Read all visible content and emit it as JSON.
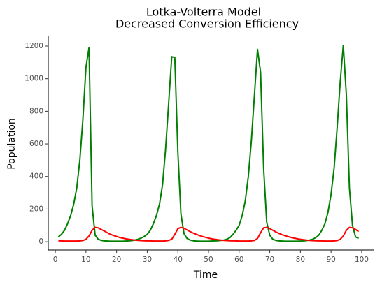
{
  "chart_data": {
    "type": "line",
    "title": [
      "Lotka-Volterra Model",
      "Decreased Conversion Efficiency"
    ],
    "x_label": "Time",
    "y_label": "Population",
    "x": [
      1,
      2,
      3,
      4,
      5,
      6,
      7,
      8,
      9,
      10,
      11,
      12,
      13,
      14,
      15,
      16,
      17,
      18,
      19,
      20,
      21,
      22,
      23,
      24,
      25,
      26,
      27,
      28,
      29,
      30,
      31,
      32,
      33,
      34,
      35,
      36,
      37,
      38,
      39,
      40,
      41,
      42,
      43,
      44,
      45,
      46,
      47,
      48,
      49,
      50,
      51,
      52,
      53,
      54,
      55,
      56,
      57,
      58,
      59,
      60,
      61,
      62,
      63,
      64,
      65,
      66,
      67,
      68,
      69,
      70,
      71,
      72,
      73,
      74,
      75,
      76,
      77,
      78,
      79,
      80,
      81,
      82,
      83,
      84,
      85,
      86,
      87,
      88,
      89,
      90,
      91,
      92,
      93,
      94,
      95,
      96,
      97,
      98,
      99
    ],
    "series": [
      {
        "color": "#008000",
        "values": [
          30,
          45,
          70,
          110,
          160,
          230,
          330,
          500,
          750,
          1070,
          1190,
          220,
          40,
          15,
          8,
          5,
          4,
          3,
          3,
          3,
          3,
          3,
          4,
          5,
          7,
          10,
          15,
          22,
          32,
          45,
          70,
          110,
          160,
          230,
          350,
          570,
          850,
          1135,
          1130,
          550,
          170,
          50,
          20,
          10,
          6,
          4,
          3,
          3,
          3,
          3,
          4,
          5,
          6,
          8,
          10,
          15,
          25,
          45,
          70,
          100,
          160,
          250,
          400,
          620,
          900,
          1180,
          1040,
          450,
          120,
          40,
          15,
          8,
          5,
          4,
          3,
          3,
          3,
          3,
          3,
          4,
          5,
          7,
          10,
          15,
          25,
          40,
          70,
          110,
          180,
          290,
          450,
          700,
          980,
          1205,
          900,
          330,
          100,
          30,
          20
        ]
      },
      {
        "color": "#ff0000",
        "values": [
          5,
          5,
          4,
          4,
          4,
          4,
          4,
          5,
          7,
          15,
          35,
          70,
          88,
          85,
          75,
          65,
          55,
          45,
          38,
          32,
          26,
          22,
          18,
          15,
          12,
          10,
          8,
          7,
          6,
          5,
          5,
          4,
          4,
          4,
          4,
          5,
          8,
          15,
          45,
          80,
          88,
          82,
          72,
          62,
          53,
          45,
          38,
          32,
          27,
          22,
          18,
          15,
          12,
          10,
          8,
          7,
          6,
          5,
          5,
          4,
          4,
          4,
          4,
          5,
          8,
          20,
          55,
          85,
          88,
          80,
          70,
          60,
          51,
          43,
          37,
          31,
          26,
          22,
          18,
          15,
          12,
          10,
          8,
          7,
          6,
          5,
          5,
          4,
          4,
          4,
          5,
          7,
          15,
          35,
          70,
          88,
          85,
          75,
          62
        ]
      }
    ],
    "xlim": [
      -2.3,
      103.9
    ],
    "ylim": [
      -51,
      1260
    ],
    "xticks": [
      0,
      10,
      20,
      30,
      40,
      50,
      60,
      70,
      80,
      90,
      100
    ],
    "yticks": [
      0,
      200,
      400,
      600,
      800,
      1000,
      1200
    ],
    "grid": false
  }
}
